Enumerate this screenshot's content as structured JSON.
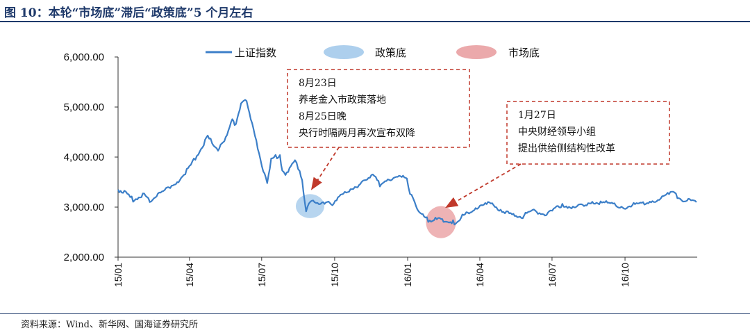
{
  "header": {
    "title": "图 10：本轮“市场底”滞后“政策底”5 个月左右"
  },
  "footer": {
    "source": "资料来源：Wind、新华网、国海证券研究所"
  },
  "chart_data": {
    "type": "line",
    "title": "本轮“市场底”滞后“政策底”5 个月左右",
    "ylim": [
      2000,
      6000
    ],
    "yticks": [
      "2,000.00",
      "3,000.00",
      "4,000.00",
      "5,000.00",
      "6,000.00"
    ],
    "ytick_values": [
      2000,
      3000,
      4000,
      5000,
      6000
    ],
    "xlim": [
      "2015-01-01",
      "2016-12-31"
    ],
    "xticks": [
      "15/01",
      "15/04",
      "15/07",
      "15/10",
      "16/01",
      "16/04",
      "16/07",
      "16/10"
    ],
    "xtick_dates": [
      "2015-01-01",
      "2015-04-01",
      "2015-07-01",
      "2015-10-01",
      "2016-01-01",
      "2016-04-01",
      "2016-07-01",
      "2016-10-01"
    ],
    "grid": false,
    "legend_position": "top",
    "series": [
      {
        "name": "上证指数",
        "color": "#3c7fc8",
        "points": [
          [
            "2015-01-01",
            3350
          ],
          [
            "2015-01-09",
            3290
          ],
          [
            "2015-01-20",
            3150
          ],
          [
            "2015-02-03",
            3250
          ],
          [
            "2015-02-10",
            3130
          ],
          [
            "2015-02-27",
            3310
          ],
          [
            "2015-03-20",
            3560
          ],
          [
            "2015-04-01",
            3800
          ],
          [
            "2015-04-14",
            4120
          ],
          [
            "2015-04-24",
            4400
          ],
          [
            "2015-05-07",
            4150
          ],
          [
            "2015-05-15",
            4300
          ],
          [
            "2015-05-25",
            4800
          ],
          [
            "2015-05-28",
            4600
          ],
          [
            "2015-06-05",
            5050
          ],
          [
            "2015-06-12",
            5150
          ],
          [
            "2015-06-19",
            4650
          ],
          [
            "2015-06-26",
            4200
          ],
          [
            "2015-07-03",
            3700
          ],
          [
            "2015-07-08",
            3500
          ],
          [
            "2015-07-13",
            3950
          ],
          [
            "2015-07-24",
            4050
          ],
          [
            "2015-07-27",
            3700
          ],
          [
            "2015-07-31",
            3680
          ],
          [
            "2015-08-12",
            3900
          ],
          [
            "2015-08-18",
            3750
          ],
          [
            "2015-08-21",
            3500
          ],
          [
            "2015-08-26",
            2930
          ],
          [
            "2015-09-02",
            3150
          ],
          [
            "2015-09-15",
            3050
          ],
          [
            "2015-09-25",
            3090
          ],
          [
            "2015-09-30",
            3050
          ],
          [
            "2015-10-12",
            3300
          ],
          [
            "2015-10-30",
            3380
          ],
          [
            "2015-11-09",
            3580
          ],
          [
            "2015-11-20",
            3620
          ],
          [
            "2015-11-27",
            3450
          ],
          [
            "2015-12-07",
            3530
          ],
          [
            "2015-12-23",
            3650
          ],
          [
            "2015-12-31",
            3540
          ],
          [
            "2016-01-04",
            3300
          ],
          [
            "2016-01-08",
            3180
          ],
          [
            "2016-01-15",
            2900
          ],
          [
            "2016-01-27",
            2740
          ],
          [
            "2016-02-05",
            2760
          ],
          [
            "2016-02-29",
            2690
          ],
          [
            "2016-03-10",
            2810
          ],
          [
            "2016-03-25",
            2980
          ],
          [
            "2016-04-13",
            3070
          ],
          [
            "2016-04-29",
            2940
          ],
          [
            "2016-05-10",
            2840
          ],
          [
            "2016-05-25",
            2820
          ],
          [
            "2016-06-08",
            2920
          ],
          [
            "2016-06-24",
            2850
          ],
          [
            "2016-07-14",
            3050
          ],
          [
            "2016-07-29",
            2980
          ],
          [
            "2016-08-19",
            3110
          ],
          [
            "2016-09-09",
            3080
          ],
          [
            "2016-09-30",
            3000
          ],
          [
            "2016-10-17",
            3060
          ],
          [
            "2016-11-08",
            3140
          ],
          [
            "2016-11-29",
            3280
          ],
          [
            "2016-12-13",
            3150
          ],
          [
            "2016-12-30",
            3100
          ]
        ]
      }
    ],
    "highlights": [
      {
        "name": "政策底",
        "color": "#9fc7ea",
        "center": [
          "2015-08-31",
          3020
        ],
        "radius_days": 18,
        "radius_value": 240
      },
      {
        "name": "市场底",
        "color": "#e89a9c",
        "center": [
          "2016-02-12",
          2700
        ],
        "radius_days": 19,
        "radius_value": 320
      }
    ],
    "annotations": [
      {
        "lines": [
          "8月23日",
          "养老金入市政策落地",
          "8月25日晚",
          "央行时隔两月再次宣布双降"
        ],
        "target": [
          "2015-09-03",
          3380
        ],
        "border_color": "#c0392b"
      },
      {
        "lines": [
          "1月27日",
          "中央财经领导小组",
          "提出供给侧结构性改革"
        ],
        "target": [
          "2016-02-20",
          3010
        ],
        "border_color": "#c0392b"
      }
    ]
  }
}
